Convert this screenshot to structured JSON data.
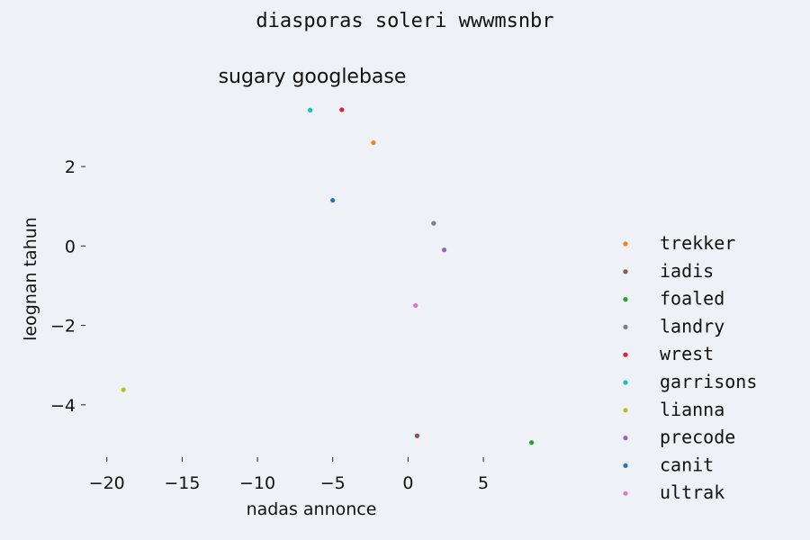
{
  "chart_data": {
    "type": "scatter",
    "suptitle": "diasporas soleri wwwmsnbr",
    "title": "sugary googlebase",
    "xlabel": "nadas annonce",
    "ylabel": "leognan tahun",
    "xlim": [
      -21,
      9
    ],
    "ylim": [
      -5.25,
      3.7
    ],
    "xticks": [
      -20,
      -15,
      -10,
      -5,
      0,
      5
    ],
    "xtick_labels": [
      "−20",
      "−15",
      "−10",
      "−5",
      "0",
      "5"
    ],
    "yticks": [
      2,
      0,
      -2,
      -4
    ],
    "ytick_labels": [
      "2",
      "0",
      "−2",
      "−4"
    ],
    "grid": false,
    "legend_position": "right",
    "series": [
      {
        "name": "trekker",
        "color": "#ff7f0e",
        "points": [
          [
            -2.3,
            2.6
          ]
        ]
      },
      {
        "name": "iadis",
        "color": "#8c564b",
        "points": [
          [
            0.6,
            -4.78
          ]
        ]
      },
      {
        "name": "foaled",
        "color": "#2ca02c",
        "points": [
          [
            8.2,
            -4.95
          ]
        ]
      },
      {
        "name": "landry",
        "color": "#7f7f7f",
        "points": [
          [
            1.7,
            0.57
          ]
        ]
      },
      {
        "name": "wrest",
        "color": "#d62728",
        "points": [
          [
            -4.4,
            3.43
          ]
        ]
      },
      {
        "name": "garrisons",
        "color": "#17becf",
        "points": [
          [
            -6.5,
            3.42
          ]
        ]
      },
      {
        "name": "lianna",
        "color": "#bcbd22",
        "points": [
          [
            -18.9,
            -3.62
          ]
        ]
      },
      {
        "name": "precode",
        "color": "#9467bd",
        "points": [
          [
            2.4,
            -0.1
          ]
        ]
      },
      {
        "name": "canit",
        "color": "#1f77b4",
        "points": [
          [
            -5.0,
            1.15
          ]
        ]
      },
      {
        "name": "ultrak",
        "color": "#e377c2",
        "points": [
          [
            0.5,
            -1.5
          ]
        ]
      }
    ]
  }
}
